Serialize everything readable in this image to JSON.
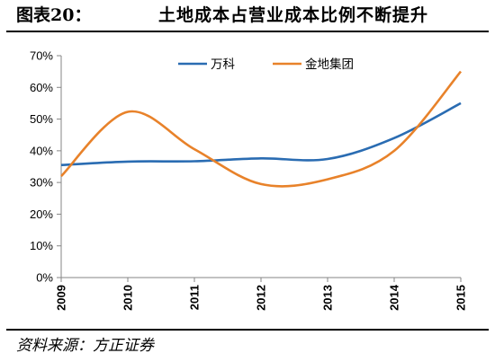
{
  "figure": {
    "label": "图表20：",
    "title": "土地成本占营业成本比例不断提升",
    "source": "资料来源：方正证券"
  },
  "chart_data": {
    "type": "line",
    "title": "",
    "xlabel": "",
    "ylabel": "",
    "categories": [
      "2009",
      "2010",
      "2011",
      "2012",
      "2013",
      "2014",
      "2015"
    ],
    "ylim": [
      0,
      70
    ],
    "yticks": [
      "0%",
      "10%",
      "20%",
      "30%",
      "40%",
      "50%",
      "60%",
      "70%"
    ],
    "grid": false,
    "legend": "top",
    "series": [
      {
        "name": "万科",
        "color": "#2a6cb2",
        "values": [
          35.5,
          36.6,
          36.7,
          37.6,
          37.4,
          44.0,
          55.0
        ]
      },
      {
        "name": "金地集团",
        "color": "#e8822a",
        "values": [
          32.0,
          52.3,
          40.5,
          29.5,
          31.0,
          40.0,
          65.0
        ]
      }
    ]
  }
}
